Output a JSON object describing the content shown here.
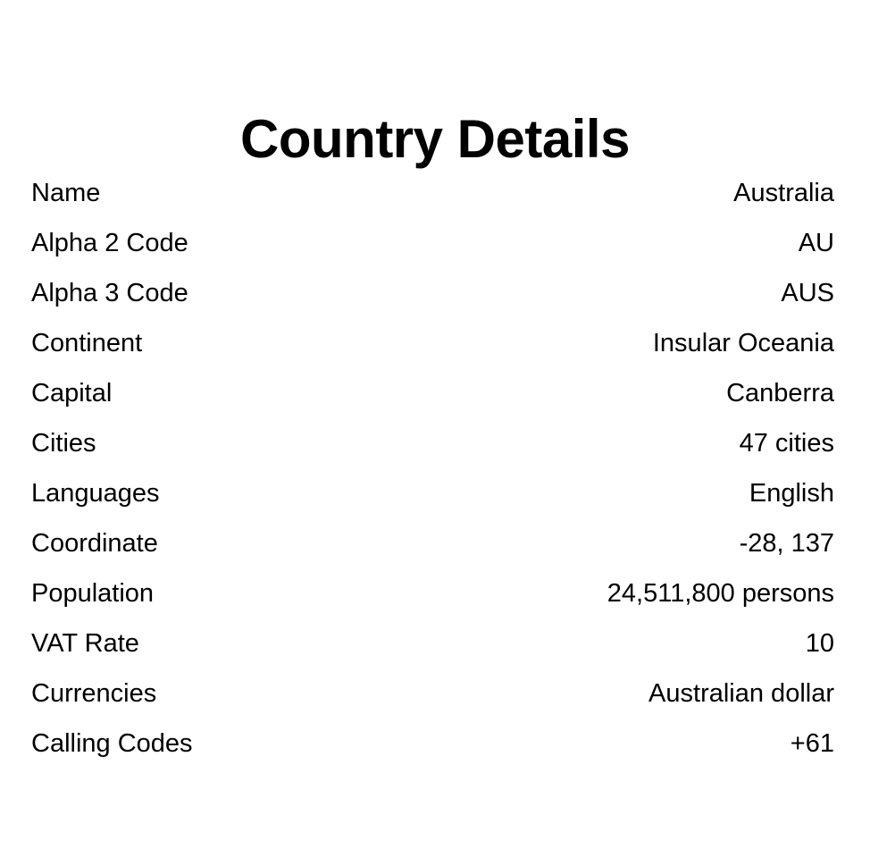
{
  "page": {
    "title": "Country Details"
  },
  "details": [
    {
      "label": "Name",
      "value": "Australia"
    },
    {
      "label": "Alpha 2 Code",
      "value": "AU"
    },
    {
      "label": "Alpha 3 Code",
      "value": "AUS"
    },
    {
      "label": "Continent",
      "value": "Insular Oceania"
    },
    {
      "label": "Capital",
      "value": "Canberra"
    },
    {
      "label": "Cities",
      "value": "47 cities"
    },
    {
      "label": "Languages",
      "value": "English"
    },
    {
      "label": "Coordinate",
      "value": "-28, 137"
    },
    {
      "label": "Population",
      "value": "24,511,800 persons"
    },
    {
      "label": "VAT Rate",
      "value": "10"
    },
    {
      "label": "Currencies",
      "value": "Australian dollar"
    },
    {
      "label": "Calling Codes",
      "value": "+61"
    }
  ]
}
